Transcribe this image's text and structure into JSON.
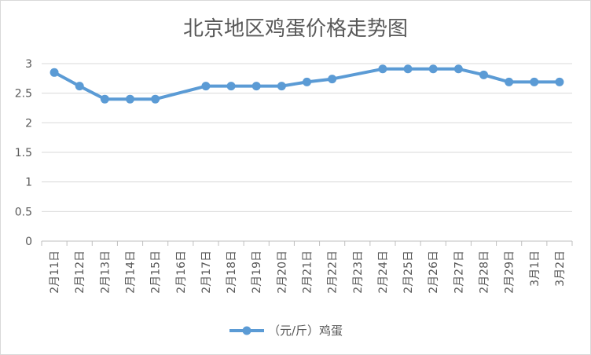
{
  "chart_data": {
    "type": "line",
    "title": "北京地区鸡蛋价格走势图",
    "xlabel": "",
    "ylabel": "",
    "categories": [
      "2月11日",
      "2月12日",
      "2月13日",
      "2月14日",
      "2月15日",
      "2月16日",
      "2月17日",
      "2月18日",
      "2月19日",
      "2月20日",
      "2月21日",
      "2月22日",
      "2月23日",
      "2月24日",
      "2月25日",
      "2月26日",
      "2月27日",
      "2月28日",
      "2月29日",
      "3月1日",
      "3月2日"
    ],
    "series": [
      {
        "name": "（元/斤）鸡蛋",
        "color": "#5b9bd5",
        "values": [
          2.85,
          2.62,
          2.4,
          2.4,
          2.4,
          null,
          2.62,
          2.62,
          2.62,
          2.62,
          2.69,
          2.74,
          null,
          2.91,
          2.91,
          2.91,
          2.91,
          2.81,
          2.69,
          2.69,
          2.69
        ]
      }
    ],
    "ylim": [
      0,
      3
    ],
    "yticks": [
      "0",
      "0.5",
      "1",
      "1.5",
      "2",
      "2.5",
      "3"
    ],
    "grid": true,
    "legend": "bottom"
  }
}
